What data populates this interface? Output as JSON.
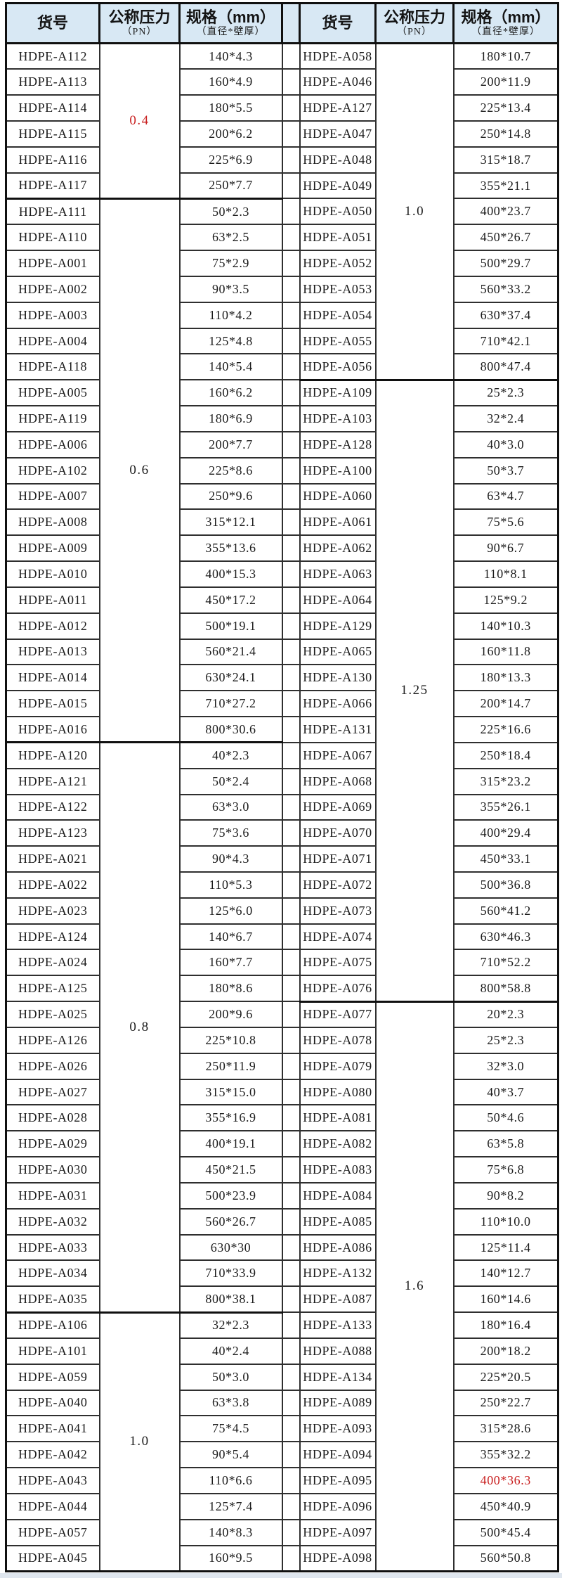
{
  "header": {
    "col_code": "货号",
    "col_pressure": "公称压力",
    "col_pressure_sub": "（PN）",
    "col_spec": "规格（mm）",
    "col_spec_sub": "（直径*壁厚）"
  },
  "colors": {
    "header_bg": "#d8e8f4",
    "border": "#2f2f2f",
    "frame": "#101010",
    "text": "#1b1b1b",
    "accent_red": "#c81e1e"
  },
  "left_groups": [
    {
      "pressure": "0.4",
      "pressure_red": true,
      "rows": [
        {
          "code": "HDPE-A112",
          "spec": "140*4.3"
        },
        {
          "code": "HDPE-A113",
          "spec": "160*4.9"
        },
        {
          "code": "HDPE-A114",
          "spec": "180*5.5"
        },
        {
          "code": "HDPE-A115",
          "spec": "200*6.2"
        },
        {
          "code": "HDPE-A116",
          "spec": "225*6.9"
        },
        {
          "code": "HDPE-A117",
          "spec": "250*7.7"
        }
      ]
    },
    {
      "pressure": "0.6",
      "pressure_red": false,
      "rows": [
        {
          "code": "HDPE-A111",
          "spec": "50*2.3"
        },
        {
          "code": "HDPE-A110",
          "spec": "63*2.5"
        },
        {
          "code": "HDPE-A001",
          "spec": "75*2.9"
        },
        {
          "code": "HDPE-A002",
          "spec": "90*3.5"
        },
        {
          "code": "HDPE-A003",
          "spec": "110*4.2"
        },
        {
          "code": "HDPE-A004",
          "spec": "125*4.8"
        },
        {
          "code": "HDPE-A118",
          "spec": "140*5.4"
        },
        {
          "code": "HDPE-A005",
          "spec": "160*6.2"
        },
        {
          "code": "HDPE-A119",
          "spec": "180*6.9"
        },
        {
          "code": "HDPE-A006",
          "spec": "200*7.7"
        },
        {
          "code": "HDPE-A102",
          "spec": "225*8.6"
        },
        {
          "code": "HDPE-A007",
          "spec": "250*9.6"
        },
        {
          "code": "HDPE-A008",
          "spec": "315*12.1"
        },
        {
          "code": "HDPE-A009",
          "spec": "355*13.6"
        },
        {
          "code": "HDPE-A010",
          "spec": "400*15.3"
        },
        {
          "code": "HDPE-A011",
          "spec": "450*17.2"
        },
        {
          "code": "HDPE-A012",
          "spec": "500*19.1"
        },
        {
          "code": "HDPE-A013",
          "spec": "560*21.4"
        },
        {
          "code": "HDPE-A014",
          "spec": "630*24.1"
        },
        {
          "code": "HDPE-A015",
          "spec": "710*27.2"
        },
        {
          "code": "HDPE-A016",
          "spec": "800*30.6"
        }
      ]
    },
    {
      "pressure": "0.8",
      "pressure_red": false,
      "rows": [
        {
          "code": "HDPE-A120",
          "spec": "40*2.3"
        },
        {
          "code": "HDPE-A121",
          "spec": "50*2.4"
        },
        {
          "code": "HDPE-A122",
          "spec": "63*3.0"
        },
        {
          "code": "HDPE-A123",
          "spec": "75*3.6"
        },
        {
          "code": "HDPE-A021",
          "spec": "90*4.3"
        },
        {
          "code": "HDPE-A022",
          "spec": "110*5.3"
        },
        {
          "code": "HDPE-A023",
          "spec": "125*6.0"
        },
        {
          "code": "HDPE-A124",
          "spec": "140*6.7"
        },
        {
          "code": "HDPE-A024",
          "spec": "160*7.7"
        },
        {
          "code": "HDPE-A125",
          "spec": "180*8.6"
        },
        {
          "code": "HDPE-A025",
          "spec": "200*9.6"
        },
        {
          "code": "HDPE-A126",
          "spec": "225*10.8"
        },
        {
          "code": "HDPE-A026",
          "spec": "250*11.9"
        },
        {
          "code": "HDPE-A027",
          "spec": "315*15.0"
        },
        {
          "code": "HDPE-A028",
          "spec": "355*16.9"
        },
        {
          "code": "HDPE-A029",
          "spec": "400*19.1"
        },
        {
          "code": "HDPE-A030",
          "spec": "450*21.5"
        },
        {
          "code": "HDPE-A031",
          "spec": "500*23.9"
        },
        {
          "code": "HDPE-A032",
          "spec": "560*26.7"
        },
        {
          "code": "HDPE-A033",
          "spec": "630*30"
        },
        {
          "code": "HDPE-A034",
          "spec": "710*33.9"
        },
        {
          "code": "HDPE-A035",
          "spec": "800*38.1"
        }
      ]
    },
    {
      "pressure": "1.0",
      "pressure_red": false,
      "rows": [
        {
          "code": "HDPE-A106",
          "spec": "32*2.3"
        },
        {
          "code": "HDPE-A101",
          "spec": "40*2.4"
        },
        {
          "code": "HDPE-A059",
          "spec": "50*3.0"
        },
        {
          "code": "HDPE-A040",
          "spec": "63*3.8"
        },
        {
          "code": "HDPE-A041",
          "spec": "75*4.5"
        },
        {
          "code": "HDPE-A042",
          "spec": "90*5.4"
        },
        {
          "code": "HDPE-A043",
          "spec": "110*6.6"
        },
        {
          "code": "HDPE-A044",
          "spec": "125*7.4"
        },
        {
          "code": "HDPE-A057",
          "spec": "140*8.3"
        },
        {
          "code": "HDPE-A045",
          "spec": "160*9.5"
        }
      ]
    }
  ],
  "right_groups": [
    {
      "pressure": "1.0",
      "pressure_red": false,
      "rows": [
        {
          "code": "HDPE-A058",
          "spec": "180*10.7"
        },
        {
          "code": "HDPE-A046",
          "spec": "200*11.9"
        },
        {
          "code": "HDPE-A127",
          "spec": "225*13.4"
        },
        {
          "code": "HDPE-A047",
          "spec": "250*14.8"
        },
        {
          "code": "HDPE-A048",
          "spec": "315*18.7"
        },
        {
          "code": "HDPE-A049",
          "spec": "355*21.1"
        },
        {
          "code": "HDPE-A050",
          "spec": "400*23.7"
        },
        {
          "code": "HDPE-A051",
          "spec": "450*26.7"
        },
        {
          "code": "HDPE-A052",
          "spec": "500*29.7"
        },
        {
          "code": "HDPE-A053",
          "spec": "560*33.2"
        },
        {
          "code": "HDPE-A054",
          "spec": "630*37.4"
        },
        {
          "code": "HDPE-A055",
          "spec": "710*42.1"
        },
        {
          "code": "HDPE-A056",
          "spec": "800*47.4"
        }
      ]
    },
    {
      "pressure": "1.25",
      "pressure_red": false,
      "rows": [
        {
          "code": "HDPE-A109",
          "spec": "25*2.3"
        },
        {
          "code": "HDPE-A103",
          "spec": "32*2.4"
        },
        {
          "code": "HDPE-A128",
          "spec": "40*3.0"
        },
        {
          "code": "HDPE-A100",
          "spec": "50*3.7"
        },
        {
          "code": "HDPE-A060",
          "spec": "63*4.7"
        },
        {
          "code": "HDPE-A061",
          "spec": "75*5.6"
        },
        {
          "code": "HDPE-A062",
          "spec": "90*6.7"
        },
        {
          "code": "HDPE-A063",
          "spec": "110*8.1"
        },
        {
          "code": "HDPE-A064",
          "spec": "125*9.2"
        },
        {
          "code": "HDPE-A129",
          "spec": "140*10.3"
        },
        {
          "code": "HDPE-A065",
          "spec": "160*11.8"
        },
        {
          "code": "HDPE-A130",
          "spec": "180*13.3"
        },
        {
          "code": "HDPE-A066",
          "spec": "200*14.7"
        },
        {
          "code": "HDPE-A131",
          "spec": "225*16.6"
        },
        {
          "code": "HDPE-A067",
          "spec": "250*18.4"
        },
        {
          "code": "HDPE-A068",
          "spec": "315*23.2"
        },
        {
          "code": "HDPE-A069",
          "spec": "355*26.1"
        },
        {
          "code": "HDPE-A070",
          "spec": "400*29.4"
        },
        {
          "code": "HDPE-A071",
          "spec": "450*33.1"
        },
        {
          "code": "HDPE-A072",
          "spec": "500*36.8"
        },
        {
          "code": "HDPE-A073",
          "spec": "560*41.2"
        },
        {
          "code": "HDPE-A074",
          "spec": "630*46.3"
        },
        {
          "code": "HDPE-A075",
          "spec": "710*52.2"
        },
        {
          "code": "HDPE-A076",
          "spec": "800*58.8"
        }
      ]
    },
    {
      "pressure": "1.6",
      "pressure_red": false,
      "rows": [
        {
          "code": "HDPE-A077",
          "spec": "20*2.3"
        },
        {
          "code": "HDPE-A078",
          "spec": "25*2.3"
        },
        {
          "code": "HDPE-A079",
          "spec": "32*3.0"
        },
        {
          "code": "HDPE-A080",
          "spec": "40*3.7"
        },
        {
          "code": "HDPE-A081",
          "spec": "50*4.6"
        },
        {
          "code": "HDPE-A082",
          "spec": "63*5.8"
        },
        {
          "code": "HDPE-A083",
          "spec": "75*6.8"
        },
        {
          "code": "HDPE-A084",
          "spec": "90*8.2"
        },
        {
          "code": "HDPE-A085",
          "spec": "110*10.0"
        },
        {
          "code": "HDPE-A086",
          "spec": "125*11.4"
        },
        {
          "code": "HDPE-A132",
          "spec": "140*12.7"
        },
        {
          "code": "HDPE-A087",
          "spec": "160*14.6"
        },
        {
          "code": "HDPE-A133",
          "spec": "180*16.4"
        },
        {
          "code": "HDPE-A088",
          "spec": "200*18.2"
        },
        {
          "code": "HDPE-A134",
          "spec": "225*20.5"
        },
        {
          "code": "HDPE-A089",
          "spec": "250*22.7"
        },
        {
          "code": "HDPE-A093",
          "spec": "315*28.6"
        },
        {
          "code": "HDPE-A094",
          "spec": "355*32.2"
        },
        {
          "code": "HDPE-A095",
          "spec": "400*36.3",
          "spec_red": true
        },
        {
          "code": "HDPE-A096",
          "spec": "450*40.9"
        },
        {
          "code": "HDPE-A097",
          "spec": "500*45.4"
        },
        {
          "code": "HDPE-A098",
          "spec": "560*50.8"
        }
      ]
    }
  ]
}
